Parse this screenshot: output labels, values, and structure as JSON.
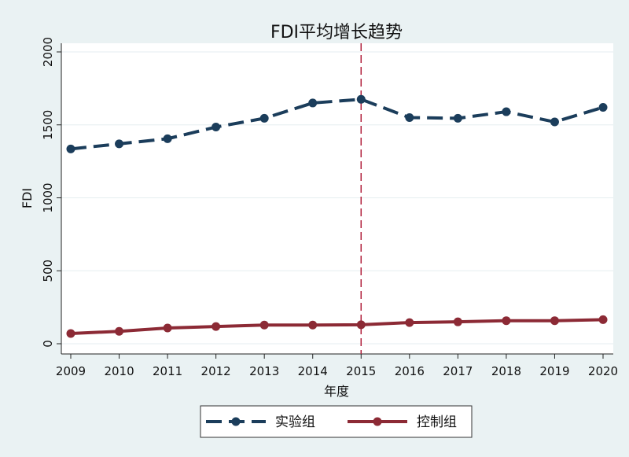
{
  "chart_data": {
    "type": "line",
    "title": "FDI平均增长趋势",
    "xlabel": "年度",
    "ylabel": "FDI",
    "x": [
      "2009",
      "2010",
      "2011",
      "2012",
      "2013",
      "2014",
      "2015",
      "2016",
      "2017",
      "2018",
      "2019",
      "2020"
    ],
    "xlim": [
      2009,
      2020
    ],
    "ylim": [
      0,
      2000
    ],
    "yticks": [
      "0",
      "500",
      "1000",
      "1500",
      "2000"
    ],
    "grid": "horizontal",
    "legend_position": "bottom",
    "reference_line": {
      "x": 2015,
      "color": "#b0203c",
      "style": "dashed"
    },
    "series": [
      {
        "name": "实验组",
        "color": "#1b3d5b",
        "line_style": "dashed",
        "values": [
          1335,
          1370,
          1405,
          1485,
          1545,
          1650,
          1675,
          1550,
          1545,
          1590,
          1520,
          1620
        ]
      },
      {
        "name": "控制组",
        "color": "#8c2a35",
        "line_style": "solid",
        "values": [
          70,
          85,
          108,
          118,
          128,
          128,
          130,
          145,
          150,
          158,
          158,
          165
        ]
      }
    ]
  }
}
